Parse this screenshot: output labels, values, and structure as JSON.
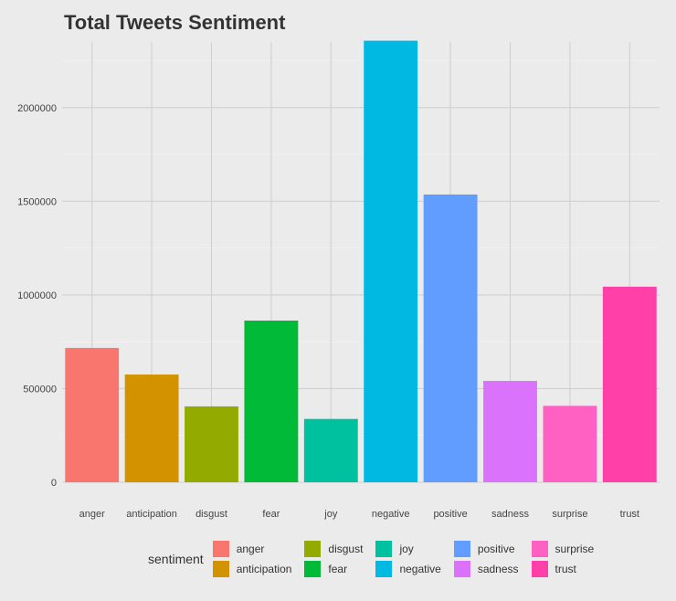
{
  "chart_data": {
    "type": "bar",
    "title": "Total Tweets Sentiment",
    "xlabel": "",
    "ylabel": "",
    "categories": [
      "anger",
      "anticipation",
      "disgust",
      "fear",
      "joy",
      "negative",
      "positive",
      "sadness",
      "surprise",
      "trust"
    ],
    "values": [
      717000,
      575000,
      405000,
      863000,
      338000,
      2357000,
      1536000,
      541000,
      408000,
      1044000
    ],
    "colors": [
      "#f8766d",
      "#d39200",
      "#93aa00",
      "#00ba38",
      "#00c19f",
      "#00b9e3",
      "#619cff",
      "#db72fb",
      "#ff61c3",
      "#ff40a8"
    ],
    "ylim": [
      0,
      2350000
    ],
    "yticks": [
      0,
      500000,
      1000000,
      1500000,
      2000000
    ],
    "ytick_labels": [
      "0",
      "500000",
      "1000000",
      "1500000",
      "2000000"
    ],
    "grid": true,
    "legend": {
      "title": "sentiment",
      "placement": "bottom",
      "entries": [
        "anger",
        "anticipation",
        "disgust",
        "fear",
        "joy",
        "negative",
        "positive",
        "sadness",
        "surprise",
        "trust"
      ]
    }
  }
}
